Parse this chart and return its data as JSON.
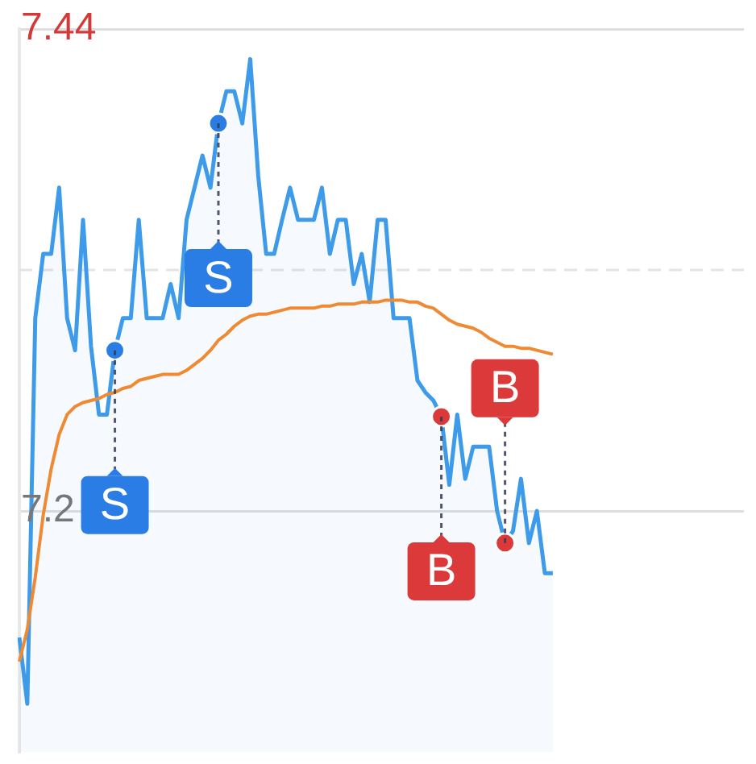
{
  "chart_data": {
    "type": "area",
    "categories": [
      null,
      null,
      null,
      null,
      null,
      null,
      null,
      null,
      null,
      null,
      null,
      null,
      null,
      null,
      null,
      null,
      null,
      null,
      null,
      null,
      null,
      null,
      null,
      null,
      null,
      null,
      null,
      null,
      null,
      null,
      null,
      null,
      null,
      null,
      null,
      null,
      null,
      null,
      null,
      null,
      null,
      null,
      null,
      null,
      null,
      null,
      null,
      null,
      null,
      null,
      null,
      null,
      null,
      null,
      null,
      null,
      null,
      null,
      null,
      null,
      null,
      null,
      null,
      null,
      null,
      null,
      null,
      null,
      null,
      null,
      null,
      null,
      null,
      null,
      null,
      null,
      null,
      null,
      null,
      null,
      null,
      null,
      null,
      null,
      null,
      null,
      null,
      null,
      null,
      null,
      null,
      null
    ],
    "series": [
      {
        "color": "#3d9be9",
        "values": [
          7.137,
          7.104,
          7.296,
          7.328,
          7.328,
          7.361,
          7.296,
          7.28,
          7.345,
          7.282,
          7.248,
          7.248,
          7.28,
          7.296,
          7.296,
          7.345,
          7.296,
          7.296,
          7.296,
          7.313,
          7.296,
          7.345,
          7.361,
          7.377,
          7.361,
          7.393,
          7.409,
          7.409,
          7.393,
          7.425,
          7.367,
          7.328,
          7.328,
          7.345,
          7.361,
          7.345,
          7.345,
          7.345,
          7.361,
          7.328,
          7.345,
          7.345,
          7.313,
          7.328,
          7.304,
          7.345,
          7.345,
          7.296,
          7.296,
          7.296,
          7.265,
          7.259,
          7.255,
          7.247,
          7.213,
          7.248,
          7.216,
          7.232,
          7.232,
          7.232,
          7.2,
          7.184,
          7.19,
          7.216,
          7.184,
          7.2,
          7.169,
          7.169,
          null,
          null,
          null,
          null,
          null,
          null,
          null,
          null,
          null,
          null,
          null,
          null,
          null,
          null,
          null,
          null,
          null,
          null,
          null,
          null,
          null,
          null,
          null,
          null
        ]
      },
      {
        "type": "line",
        "color": "#ef8a33",
        "values": [
          7.125,
          7.141,
          7.167,
          7.198,
          7.221,
          7.238,
          7.248,
          7.252,
          7.254,
          7.255,
          7.256,
          7.258,
          7.259,
          7.261,
          7.262,
          7.265,
          7.266,
          7.267,
          7.268,
          7.268,
          7.268,
          7.27,
          7.273,
          7.276,
          7.28,
          7.285,
          7.288,
          7.292,
          7.295,
          7.297,
          7.298,
          7.298,
          7.299,
          7.3,
          7.301,
          7.301,
          7.301,
          7.301,
          7.302,
          7.302,
          7.303,
          7.303,
          7.303,
          7.304,
          7.304,
          7.304,
          7.305,
          7.305,
          7.305,
          7.304,
          7.304,
          7.302,
          7.301,
          7.298,
          7.295,
          7.293,
          7.292,
          7.291,
          7.289,
          7.286,
          7.284,
          7.282,
          7.282,
          7.281,
          7.281,
          7.28,
          7.279,
          7.278,
          null,
          null,
          null,
          null,
          null,
          null,
          null,
          null,
          null,
          null,
          null,
          null,
          null,
          null,
          null,
          null,
          null,
          null,
          null,
          null,
          null,
          null,
          null,
          null
        ]
      },
      {
        "type": "scatter",
        "color": "#2b7de6",
        "values": [
          null,
          null,
          null,
          null,
          null,
          null,
          null,
          null,
          null,
          null,
          null,
          null,
          7.28,
          null,
          null,
          null,
          null,
          null,
          null,
          null,
          null,
          null,
          null,
          null,
          null,
          7.393,
          null,
          null,
          null,
          null,
          null,
          null,
          null,
          null,
          null,
          null,
          null,
          null,
          null,
          null,
          null,
          null,
          null,
          null,
          null,
          null,
          null,
          null,
          null,
          null,
          null,
          null,
          null,
          null,
          null,
          null,
          null,
          null,
          null,
          null,
          null,
          null,
          null,
          null,
          null,
          null,
          null,
          null,
          null,
          null,
          null,
          null,
          null,
          null,
          null,
          null,
          null,
          null,
          null,
          null,
          null,
          null,
          null,
          null,
          null,
          null,
          null,
          null,
          null,
          null,
          null,
          null
        ]
      },
      {
        "type": "scatter",
        "color": "#dc3a3a",
        "values": [
          null,
          null,
          null,
          null,
          null,
          null,
          null,
          null,
          null,
          null,
          null,
          null,
          null,
          null,
          null,
          null,
          null,
          null,
          null,
          null,
          null,
          null,
          null,
          null,
          null,
          null,
          null,
          null,
          null,
          null,
          null,
          null,
          null,
          null,
          null,
          null,
          null,
          null,
          null,
          null,
          null,
          null,
          null,
          null,
          null,
          null,
          null,
          null,
          null,
          null,
          null,
          null,
          null,
          7.247,
          null,
          null,
          null,
          null,
          null,
          null,
          null,
          7.184,
          null,
          null,
          null,
          null,
          null,
          null,
          null,
          null,
          null,
          null,
          null,
          null,
          null,
          null,
          null,
          null,
          null,
          null,
          null,
          null,
          null,
          null,
          null,
          null,
          null,
          null,
          null,
          null,
          null,
          null
        ]
      }
    ],
    "ylim": [
      7.08,
      7.44
    ],
    "yticks": [
      7.44,
      7.2
    ],
    "ref_lines": [
      {
        "axis": "y",
        "value": 7.32,
        "color": "#e4e4e4",
        "line_style": "dashed"
      }
    ],
    "grid": "y",
    "annotations": [
      {
        "text": "S",
        "y": 7.28
      },
      {
        "text": "S",
        "y": 7.393
      },
      {
        "text": "B",
        "y": 7.247
      },
      {
        "text": "B",
        "y": 7.184
      }
    ]
  }
}
